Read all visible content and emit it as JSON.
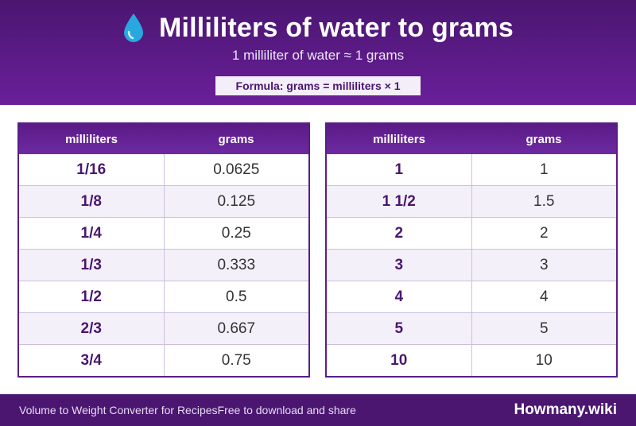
{
  "header": {
    "title": "Milliliters of water to grams",
    "subtitle": "1 milliliter of water ≈ 1 grams",
    "formula": "Formula: grams = milliliters × 1",
    "icon": "water-drop-icon"
  },
  "tables": [
    {
      "headers": [
        "milliliters",
        "grams"
      ],
      "rows": [
        [
          "1/16",
          "0.0625"
        ],
        [
          "1/8",
          "0.125"
        ],
        [
          "1/4",
          "0.25"
        ],
        [
          "1/3",
          "0.333"
        ],
        [
          "1/2",
          "0.5"
        ],
        [
          "2/3",
          "0.667"
        ],
        [
          "3/4",
          "0.75"
        ]
      ]
    },
    {
      "headers": [
        "milliliters",
        "grams"
      ],
      "rows": [
        [
          "1",
          "1"
        ],
        [
          "1 1/2",
          "1.5"
        ],
        [
          "2",
          "2"
        ],
        [
          "3",
          "3"
        ],
        [
          "4",
          "4"
        ],
        [
          "5",
          "5"
        ],
        [
          "10",
          "10"
        ]
      ]
    }
  ],
  "footer": {
    "left_text": "Volume to Weight Converter for RecipesFree to download and share",
    "brand": "Howmany.wiki"
  },
  "colors": {
    "brand_purple": "#4a1670",
    "header_purple": "#6a1f9a",
    "row_alt": "#f4f0f9",
    "drop_blue": "#29a8e0"
  }
}
